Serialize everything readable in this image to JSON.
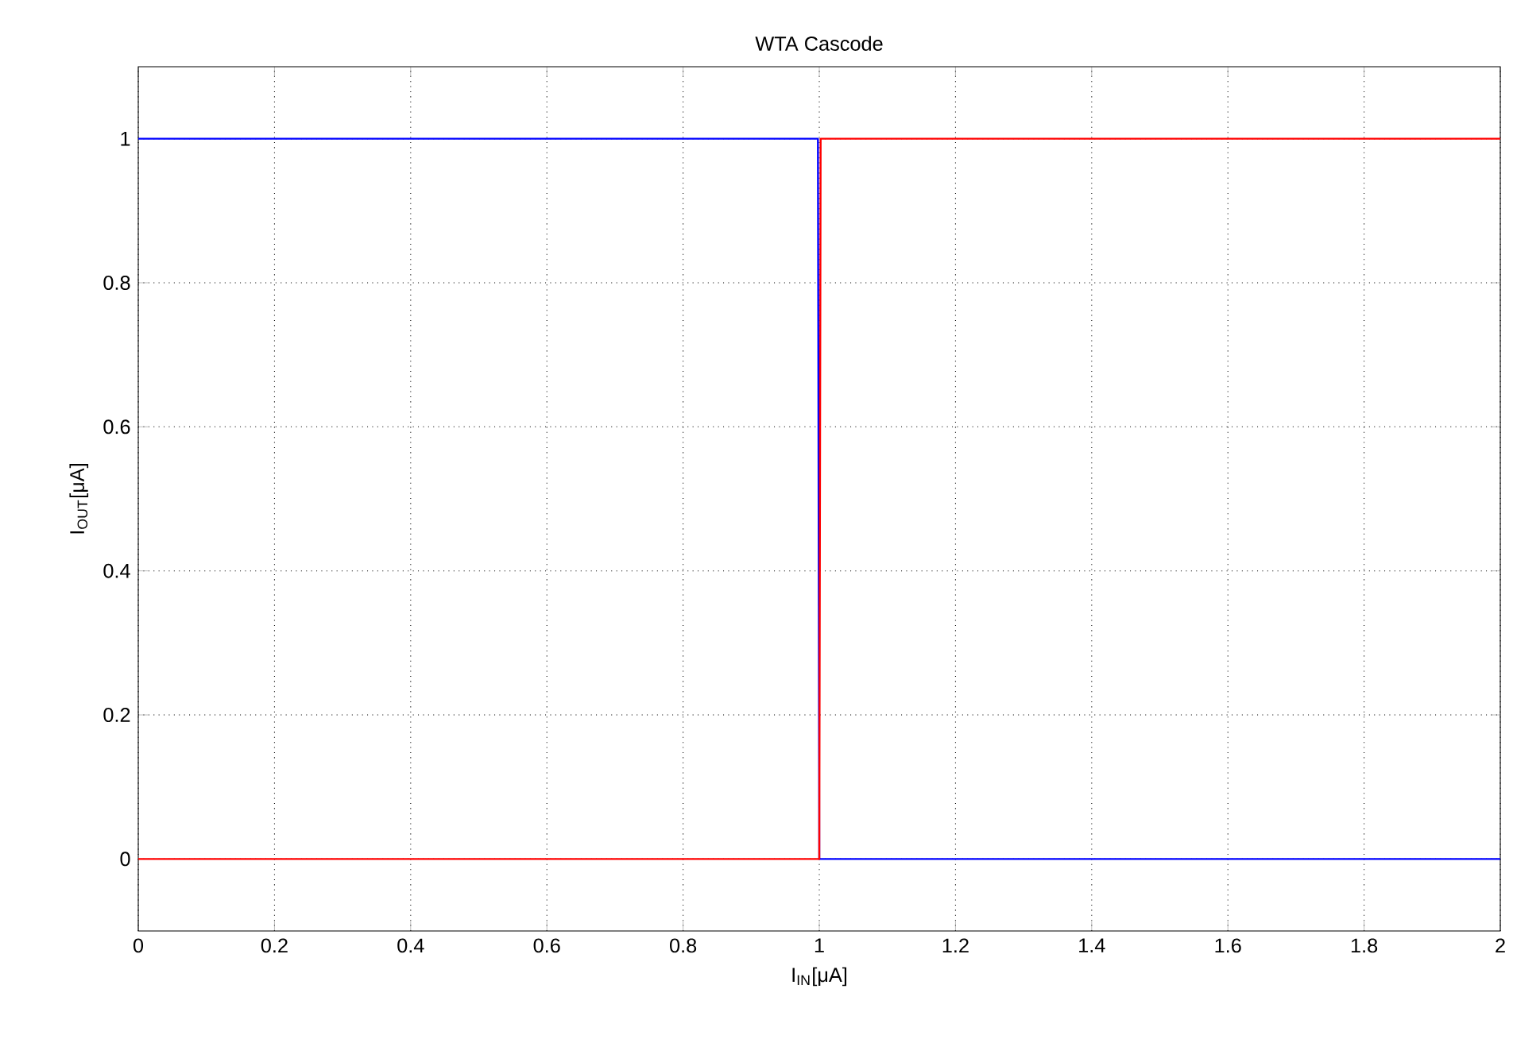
{
  "chart_data": {
    "type": "line",
    "title": "WTA Cascode",
    "xlabel": "I$_{IN}$[μA]",
    "ylabel": "I$_{OUT}$[μA]",
    "series": [
      {
        "color": "#0000ff",
        "x": [
          0,
          0.998,
          1.0,
          2
        ],
        "values": [
          1,
          1,
          0,
          0
        ]
      },
      {
        "color": "#ff0000",
        "x": [
          0,
          1.0,
          1.002,
          2
        ],
        "values": [
          0,
          0,
          1,
          1
        ]
      }
    ],
    "xlim": [
      0,
      2
    ],
    "ylim": [
      -0.1,
      1.1
    ],
    "xticks": [
      0,
      0.2,
      0.4,
      0.6,
      0.8,
      1,
      1.2,
      1.4,
      1.6,
      1.8,
      2
    ],
    "yticks": [
      0,
      0.2,
      0.4,
      0.6,
      0.8,
      1
    ],
    "grid": true,
    "marker": "none",
    "line_style": "solid"
  }
}
